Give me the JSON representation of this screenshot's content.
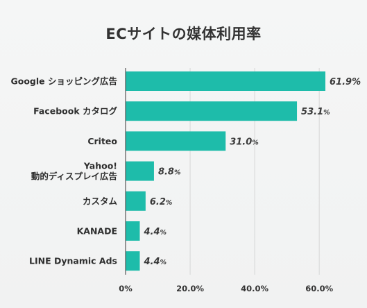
{
  "chart_data": {
    "type": "bar",
    "orientation": "horizontal",
    "title": "ECサイトの媒体利用率",
    "categories": [
      [
        "Google ショッピング広告"
      ],
      [
        "Facebook カタログ"
      ],
      [
        "Criteo"
      ],
      [
        "Yahoo!",
        "動的ディスプレイ広告"
      ],
      [
        "カスタム"
      ],
      [
        "KANADE"
      ],
      [
        "LINE Dynamic Ads"
      ]
    ],
    "values": [
      61.9,
      53.1,
      31.0,
      8.8,
      6.2,
      4.4,
      4.4
    ],
    "value_labels": [
      [
        "61.9",
        "%"
      ],
      [
        "53.1",
        "%"
      ],
      [
        "31.0",
        "%"
      ],
      [
        "8.8",
        "%"
      ],
      [
        "6.2",
        "%"
      ],
      [
        "4.4",
        "%"
      ],
      [
        "4.4",
        "%"
      ]
    ],
    "xticks": [
      0,
      20,
      40,
      60
    ],
    "xtick_labels": [
      "0%",
      "20.0%",
      "40.0%",
      "60.0%"
    ],
    "xlim": [
      0,
      61.9
    ],
    "grid": "vertical",
    "bar_color": "#1ebcaa",
    "grid_color": "#d6d6d6",
    "axis_color": "#555555"
  }
}
